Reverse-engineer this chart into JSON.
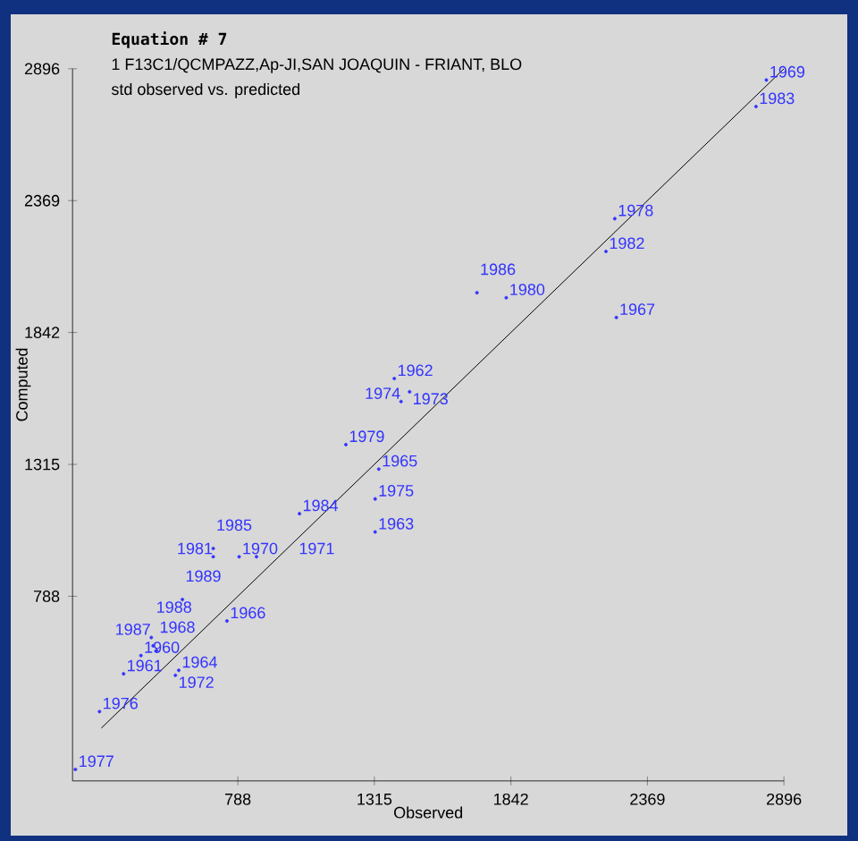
{
  "chart_data": {
    "type": "scatter",
    "title": "Equation # 7",
    "subtitle": "1   F13C1/QCMPAZZ,Ap-JI,SAN JOAQUIN - FRIANT, BLO",
    "xlabel": "Observed",
    "ylabel": "Computed",
    "xlim": [
      150,
      2896
    ],
    "ylim": [
      50,
      2896
    ],
    "xticks": [
      788,
      1315,
      1842,
      2369,
      2896
    ],
    "yticks": [
      788,
      1315,
      1842,
      2369,
      2896
    ],
    "series": [
      {
        "type": "scatter",
        "color": "#3333ff",
        "marker": "circle",
        "x": [
          414,
          347,
          1392,
          1318,
          560,
          1332,
          746,
          2249,
          474,
          2828,
          793,
          860,
          547,
          1451,
          1418,
          1318,
          254,
          161,
          2243,
          1205,
          1824,
          693,
          2209,
          2788,
          1026,
          693,
          1711,
          454,
          461,
          574
        ],
        "values": [
          551,
          478,
          1658,
          1045,
          492,
          1296,
          689,
          1902,
          571,
          2851,
          946,
          946,
          472,
          1605,
          1566,
          1177,
          327,
          96,
          2297,
          1394,
          1981,
          946,
          2166,
          2745,
          1118,
          979,
          2001,
          623,
          590,
          775
        ]
      },
      {
        "type": "line",
        "color": "#000000",
        "x": [
          261,
          2896
        ],
        "values": [
          261,
          2896
        ]
      }
    ],
    "annotations": [
      "std observed vs. predicted",
      {
        "text": "1960",
        "x": 414,
        "y": 551
      },
      {
        "text": "1961",
        "x": 347,
        "y": 478
      },
      {
        "text": "1962",
        "x": 1392,
        "y": 1658
      },
      {
        "text": "1963",
        "x": 1318,
        "y": 1045
      },
      {
        "text": "1964",
        "x": 560,
        "y": 492
      },
      {
        "text": "1965",
        "x": 1332,
        "y": 1296
      },
      {
        "text": "1966",
        "x": 746,
        "y": 689
      },
      {
        "text": "1967",
        "x": 2249,
        "y": 1902
      },
      {
        "text": "1968",
        "x": 474,
        "y": 571
      },
      {
        "text": "1969",
        "x": 2828,
        "y": 2851
      },
      {
        "text": "1970",
        "x": 793,
        "y": 946
      },
      {
        "text": "1971",
        "x": 860,
        "y": 946
      },
      {
        "text": "1972",
        "x": 547,
        "y": 472
      },
      {
        "text": "1973",
        "x": 1451,
        "y": 1605
      },
      {
        "text": "1974",
        "x": 1418,
        "y": 1566
      },
      {
        "text": "1975",
        "x": 1318,
        "y": 1177
      },
      {
        "text": "1976",
        "x": 254,
        "y": 327
      },
      {
        "text": "1977",
        "x": 161,
        "y": 96
      },
      {
        "text": "1978",
        "x": 2243,
        "y": 2297
      },
      {
        "text": "1979",
        "x": 1205,
        "y": 1394
      },
      {
        "text": "1980",
        "x": 1824,
        "y": 1981
      },
      {
        "text": "1981",
        "x": 693,
        "y": 946
      },
      {
        "text": "1982",
        "x": 2209,
        "y": 2166
      },
      {
        "text": "1983",
        "x": 2788,
        "y": 2745
      },
      {
        "text": "1984",
        "x": 1026,
        "y": 1118
      },
      {
        "text": "1985",
        "x": 693,
        "y": 979
      },
      {
        "text": "1986",
        "x": 1711,
        "y": 2001
      },
      {
        "text": "1987",
        "x": 454,
        "y": 623
      },
      {
        "text": "1988",
        "x": 461,
        "y": 590
      },
      {
        "text": "1989",
        "x": 574,
        "y": 775
      }
    ]
  }
}
